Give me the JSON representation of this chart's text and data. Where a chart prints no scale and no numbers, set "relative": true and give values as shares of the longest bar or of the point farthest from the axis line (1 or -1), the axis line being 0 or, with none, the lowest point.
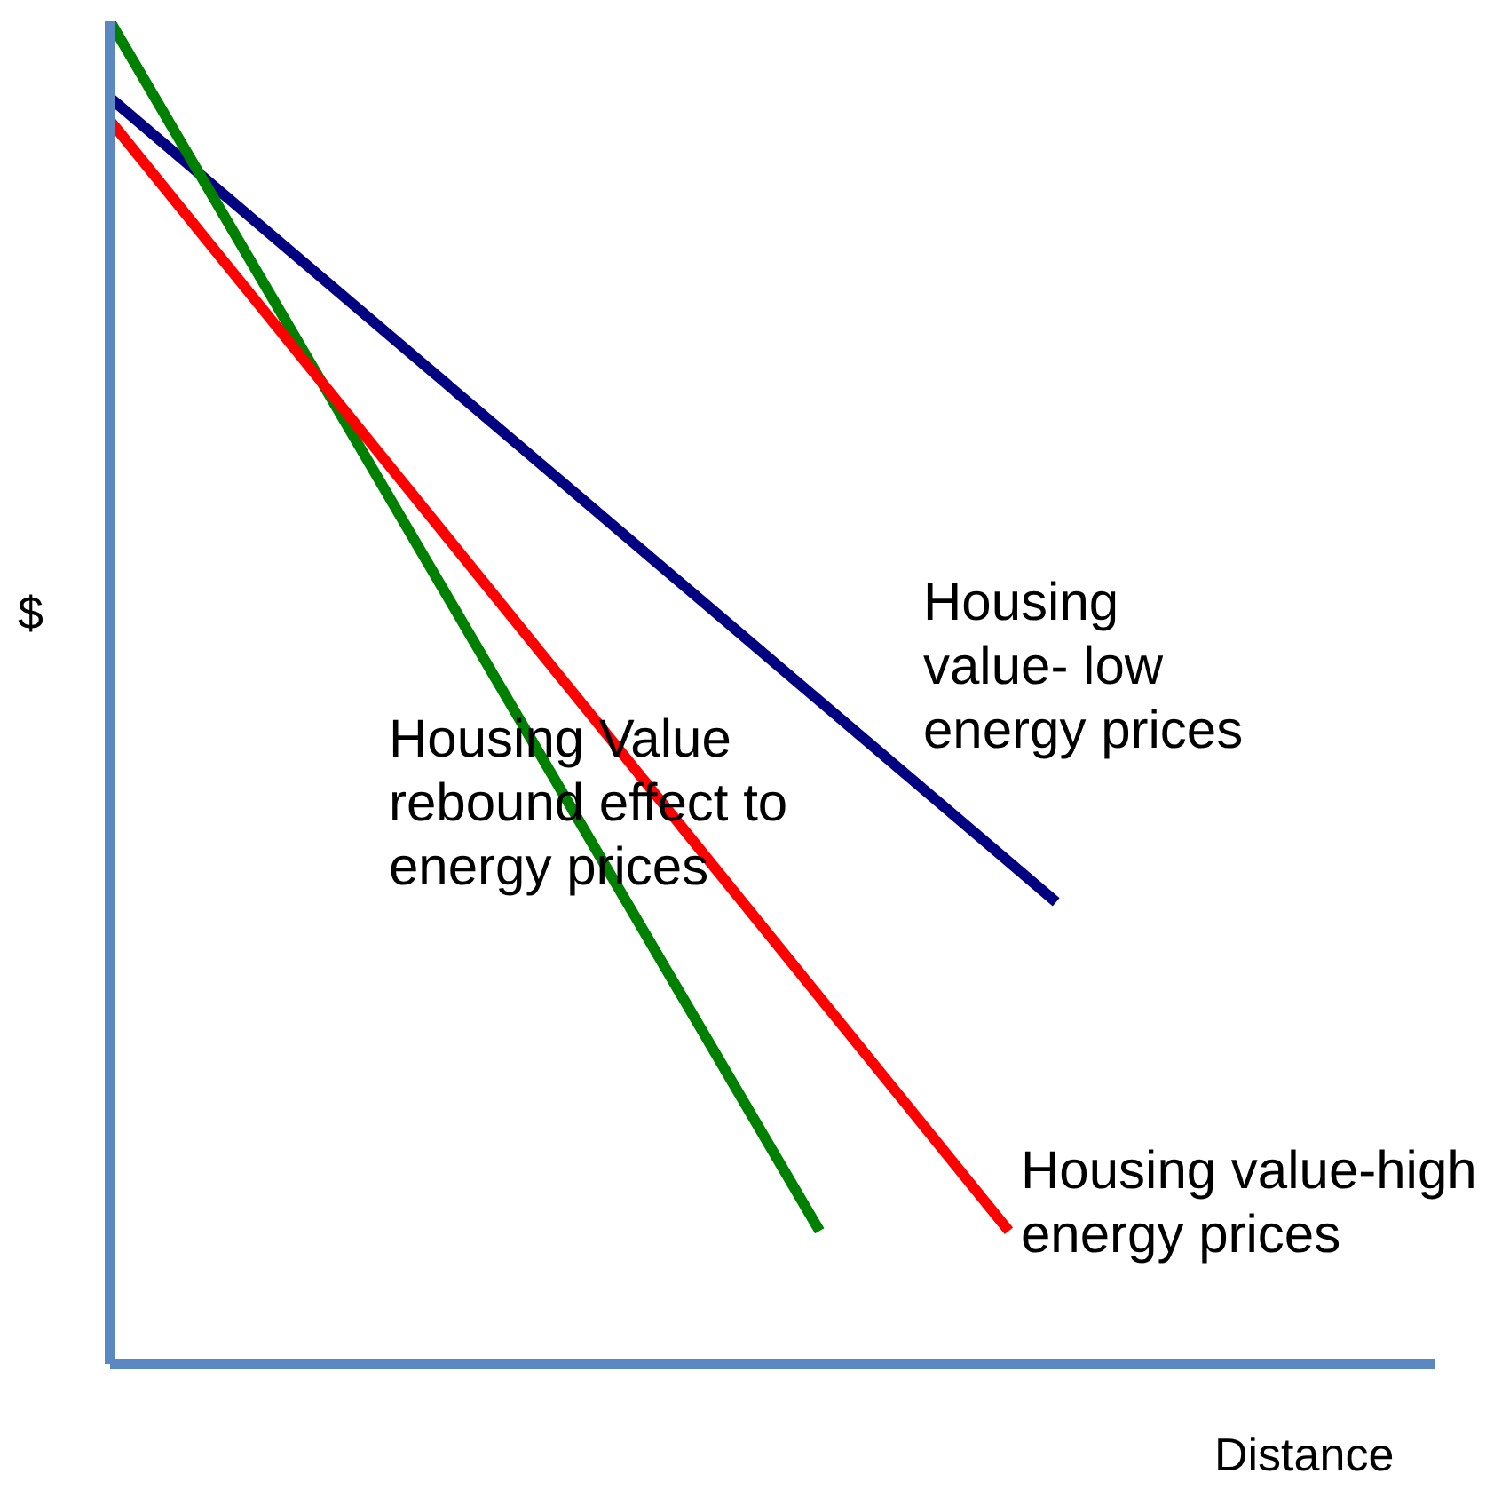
{
  "chart_data": {
    "type": "line",
    "relative": true,
    "xlabel": "Distance",
    "ylabel": "$",
    "marker": "none",
    "line_style": "solid",
    "categories": [
      null,
      null,
      null,
      null,
      null,
      null,
      null,
      null,
      null,
      null,
      null,
      null,
      null,
      null,
      null,
      null,
      null,
      null,
      null,
      null,
      null,
      null,
      null,
      null,
      null,
      null,
      null,
      null,
      null
    ],
    "series": [
      {
        "name": "Housing value- low energy prices",
        "color": "#000080",
        "values": [
          0.943,
          null,
          null,
          null,
          null,
          null,
          null,
          null,
          null,
          null,
          null,
          null,
          null,
          null,
          null,
          null,
          null,
          null,
          null,
          null,
          0.344,
          null,
          null,
          null,
          null,
          null,
          null,
          null,
          null
        ]
      },
      {
        "name": "Housing Value rebound effect to energy prices",
        "color": "#008000",
        "values": [
          1,
          null,
          null,
          null,
          null,
          null,
          null,
          null,
          null,
          null,
          null,
          null,
          null,
          null,
          null,
          0.099,
          null,
          null,
          null,
          null,
          null,
          null,
          null,
          null,
          null,
          null,
          null,
          null,
          null
        ]
      },
      {
        "name": "Housing value-high energy prices",
        "color": "#ff0000",
        "values": [
          0.926,
          null,
          null,
          null,
          null,
          null,
          null,
          null,
          null,
          null,
          null,
          null,
          null,
          null,
          null,
          null,
          null,
          null,
          null,
          0.099,
          null,
          null,
          null,
          null,
          null,
          null,
          null,
          null,
          null
        ]
      }
    ]
  }
}
